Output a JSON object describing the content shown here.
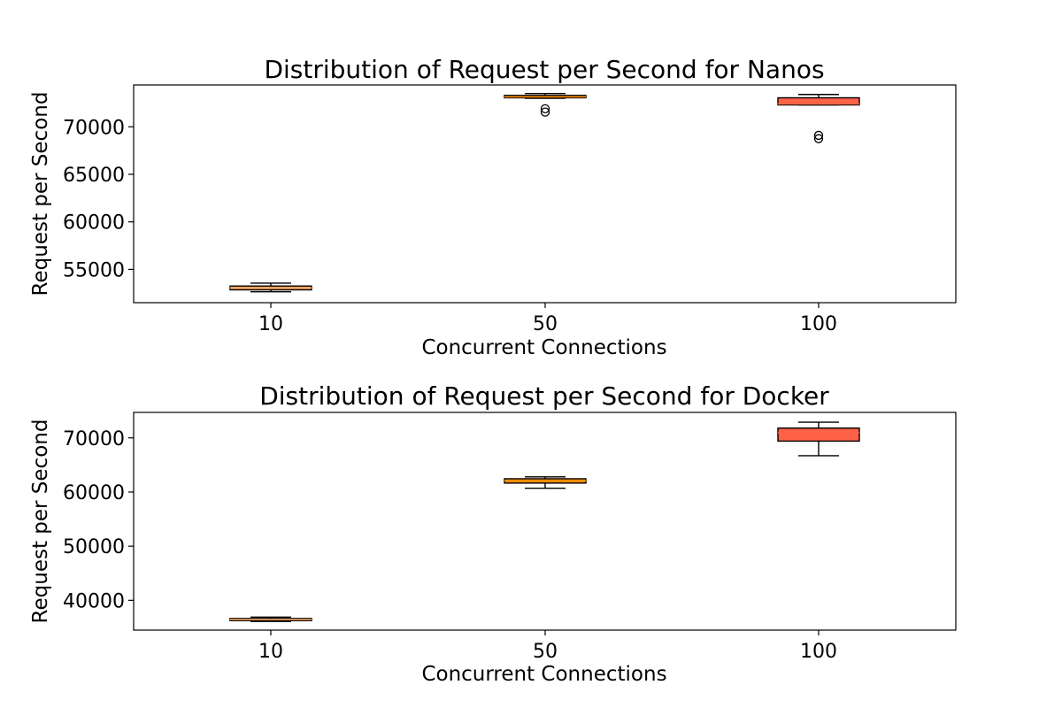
{
  "chart_data": [
    {
      "type": "boxplot",
      "title": "Distribution of Request per Second for Nanos",
      "xlabel": "Concurrent Connections",
      "ylabel": "Request per Second",
      "categories": [
        "10",
        "50",
        "100"
      ],
      "ylim": [
        51500,
        74400
      ],
      "yticks": [
        55000,
        60000,
        65000,
        70000
      ],
      "ytick_labels": [
        "55000",
        "60000",
        "65000",
        "70000"
      ],
      "grid": false,
      "boxes": [
        {
          "category": "10",
          "whislo": 52650,
          "q1": 52850,
          "med": 53050,
          "q3": 53250,
          "whishi": 53550,
          "fliers": [],
          "color": "#F4A460"
        },
        {
          "category": "50",
          "whislo": 73000,
          "q1": 73050,
          "med": 73150,
          "q3": 73300,
          "whishi": 73500,
          "fliers": [
            71900,
            71550
          ],
          "color": "#FF8C00"
        },
        {
          "category": "100",
          "whislo": 72300,
          "q1": 72300,
          "med": 72400,
          "q3": 73050,
          "whishi": 73400,
          "fliers": [
            69100,
            68750
          ],
          "color": "#FF6347"
        }
      ]
    },
    {
      "type": "boxplot",
      "title": "Distribution of Request per Second for Docker",
      "xlabel": "Concurrent Connections",
      "ylabel": "Request per Second",
      "categories": [
        "10",
        "50",
        "100"
      ],
      "ylim": [
        34500,
        74700
      ],
      "yticks": [
        40000,
        50000,
        60000,
        70000
      ],
      "ytick_labels": [
        "40000",
        "50000",
        "60000",
        "70000"
      ],
      "grid": false,
      "boxes": [
        {
          "category": "10",
          "whislo": 36100,
          "q1": 36250,
          "med": 36450,
          "q3": 36650,
          "whishi": 36900,
          "fliers": [],
          "color": "#F4A460"
        },
        {
          "category": "50",
          "whislo": 60700,
          "q1": 61650,
          "med": 62100,
          "q3": 62450,
          "whishi": 62800,
          "fliers": [],
          "color": "#FF8C00"
        },
        {
          "category": "100",
          "whislo": 66700,
          "q1": 69400,
          "med": 71000,
          "q3": 71800,
          "whishi": 72900,
          "fliers": [],
          "color": "#FF6347"
        }
      ]
    }
  ]
}
